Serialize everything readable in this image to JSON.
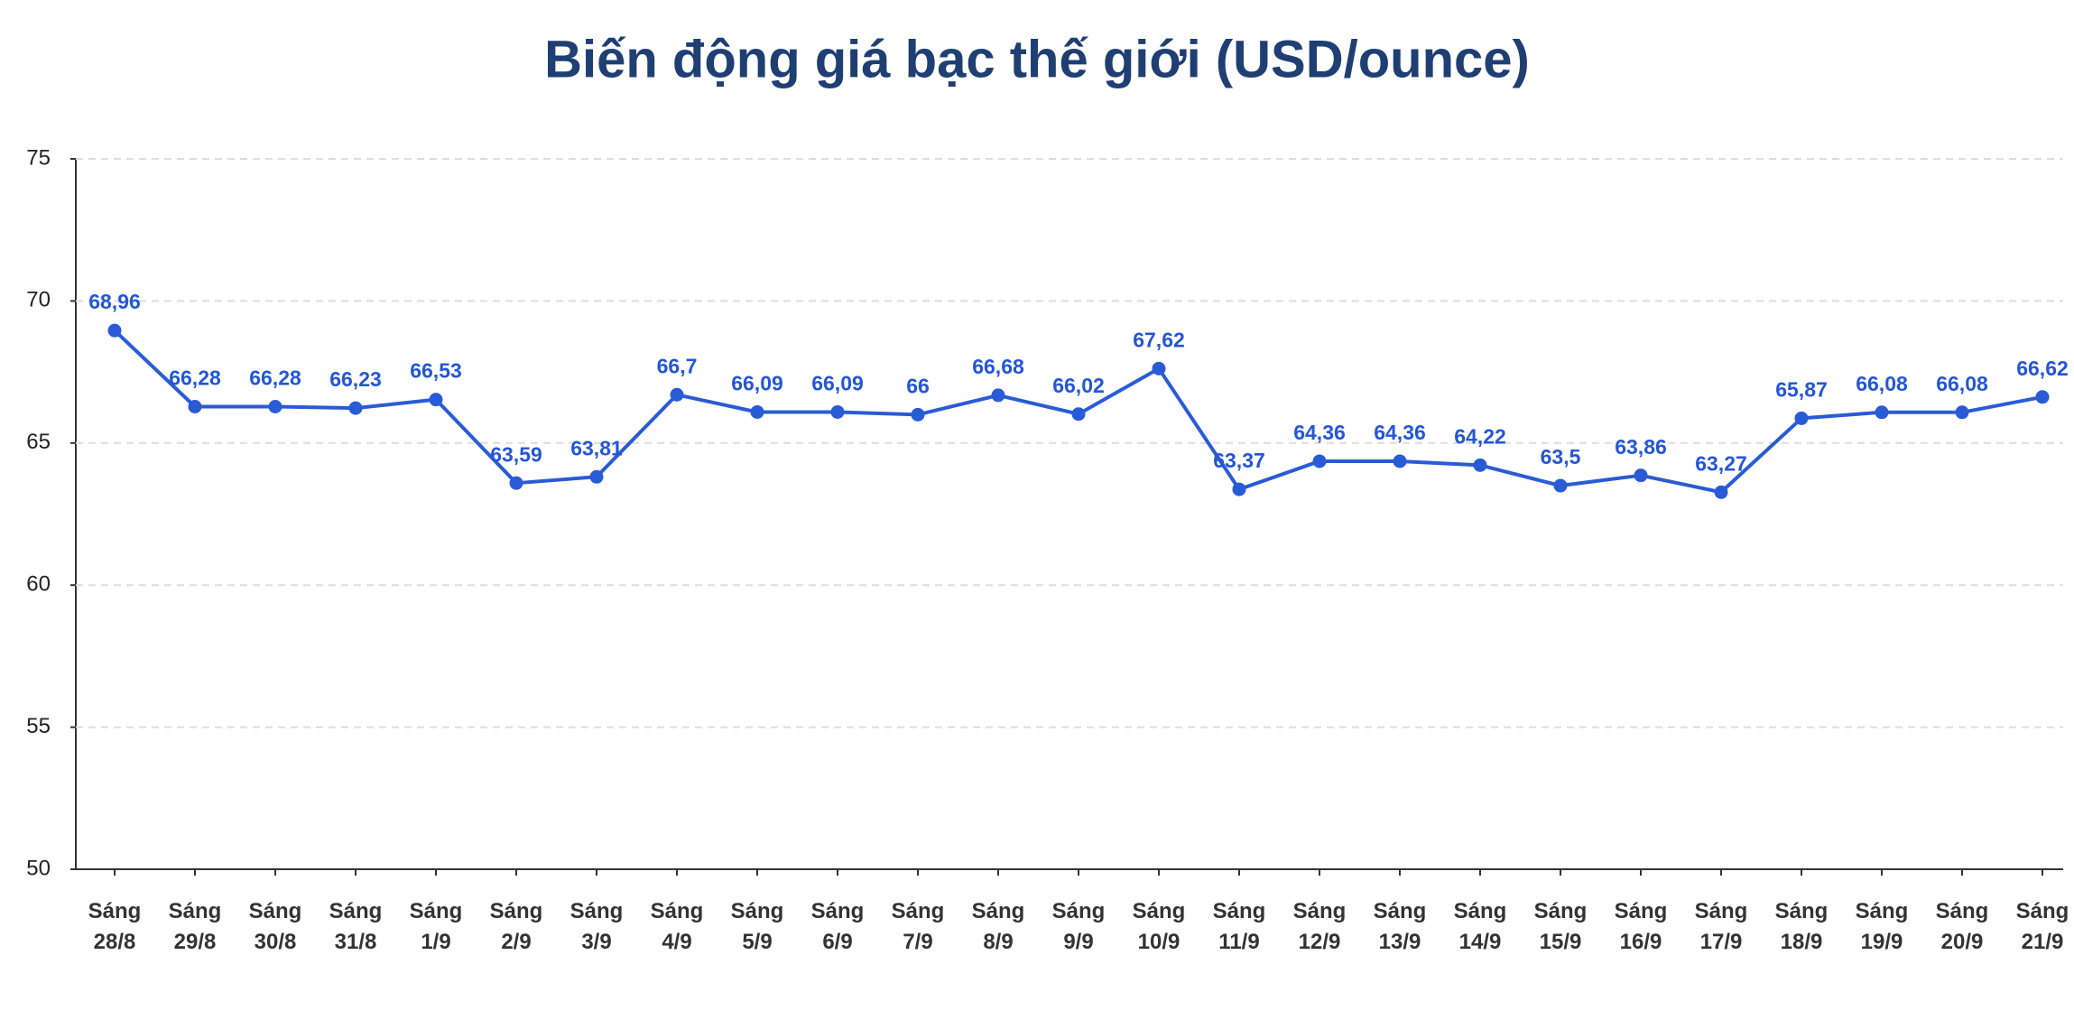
{
  "chart_data": {
    "type": "line",
    "title": "Biến động giá bạc thế giới (USD/ounce)",
    "categories": [
      [
        "Sáng",
        "28/8"
      ],
      [
        "Sáng",
        "29/8"
      ],
      [
        "Sáng",
        "30/8"
      ],
      [
        "Sáng",
        "31/8"
      ],
      [
        "Sáng",
        "1/9"
      ],
      [
        "Sáng",
        "2/9"
      ],
      [
        "Sáng",
        "3/9"
      ],
      [
        "Sáng",
        "4/9"
      ],
      [
        "Sáng",
        "5/9"
      ],
      [
        "Sáng",
        "6/9"
      ],
      [
        "Sáng",
        "7/9"
      ],
      [
        "Sáng",
        "8/9"
      ],
      [
        "Sáng",
        "9/9"
      ],
      [
        "Sáng",
        "10/9"
      ],
      [
        "Sáng",
        "11/9"
      ],
      [
        "Sáng",
        "12/9"
      ],
      [
        "Sáng",
        "13/9"
      ],
      [
        "Sáng",
        "14/9"
      ],
      [
        "Sáng",
        "15/9"
      ],
      [
        "Sáng",
        "16/9"
      ],
      [
        "Sáng",
        "17/9"
      ],
      [
        "Sáng",
        "18/9"
      ],
      [
        "Sáng",
        "19/9"
      ],
      [
        "Sáng",
        "20/9"
      ],
      [
        "Sáng",
        "21/9"
      ]
    ],
    "values": [
      68.96,
      66.28,
      66.28,
      66.23,
      66.53,
      63.59,
      63.81,
      66.7,
      66.09,
      66.09,
      66,
      66.68,
      66.02,
      67.62,
      63.37,
      64.36,
      64.36,
      64.22,
      63.5,
      63.86,
      63.27,
      65.87,
      66.08,
      66.08,
      66.62
    ],
    "value_labels": [
      "68,96",
      "66,28",
      "66,28",
      "66,23",
      "66,53",
      "63,59",
      "63,81",
      "66,7",
      "66,09",
      "66,09",
      "66",
      "66,68",
      "66,02",
      "67,62",
      "63,37",
      "64,36",
      "64,36",
      "64,22",
      "63,5",
      "63,86",
      "63,27",
      "65,87",
      "66,08",
      "66,08",
      "66,62"
    ],
    "color": "#2a5bd7",
    "ylim": [
      50,
      75
    ],
    "yticks": [
      50,
      55,
      60,
      65,
      70,
      75
    ],
    "grid": true
  }
}
